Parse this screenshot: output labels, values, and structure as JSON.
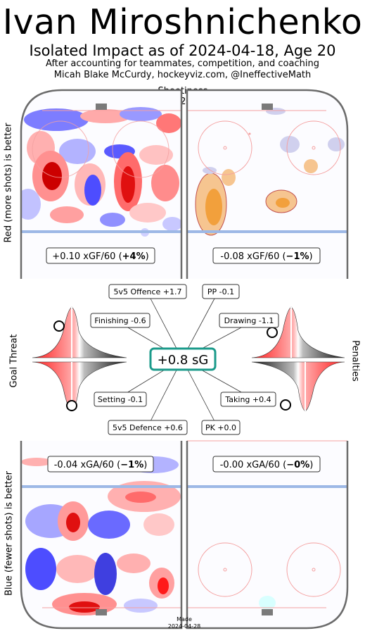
{
  "header": {
    "title": "Ivan Miroshnichenko",
    "subtitle": "Isolated Impact as of 2024-04-18, Age 20",
    "byline1": "After accounting for teammates, competition, and coaching",
    "byline2": "Micah Blake McCurdy, hockeyviz.com, @IneffectiveMath"
  },
  "side_labels": {
    "top_left": "Red (more shots) is better",
    "bottom_left": "Blue (fewer shots) is better",
    "goal_threat": "Goal Threat",
    "penalties": "Penalties"
  },
  "shootiness": {
    "label": "Shootiness",
    "value": "-22%"
  },
  "rinks": {
    "top_left": {
      "text": "+0.10 xGF/60 (",
      "bold": "+4%",
      "close": ")"
    },
    "top_right": {
      "text": "-0.08 xGF/60 (",
      "bold": "−1%",
      "close": ")"
    },
    "bottom_left": {
      "text": "-0.04 xGA/60 (",
      "bold": "−1%",
      "close": ")"
    },
    "bottom_right": {
      "text": "-0.00 xGA/60 (",
      "bold": "−0%",
      "close": ")"
    }
  },
  "center_value": "+0.8 sG",
  "components": {
    "offence": "5v5 Offence +1.7",
    "pp": "PP -0.1",
    "finishing": "Finishing -0.6",
    "drawing": "Drawing -1.1",
    "setting": "Setting -0.1",
    "taking": "Taking +0.4",
    "defence": "5v5 Defence +0.6",
    "pk": "PK +0.0"
  },
  "footer": {
    "made_label": "Made",
    "made_date": "2024-04-28"
  },
  "colors": {
    "accent_teal": "#1a9a8a",
    "red": "#e8363a",
    "blue": "#3f3fe0",
    "orange": "#f2a03c",
    "rink_line_blue": "#9db8e6",
    "rink_line_red": "#f4a0a0",
    "board": "#6b6b6b"
  },
  "chart_data": {
    "type": "table",
    "title": "Isolated Impact as of 2024-04-18, Age 20",
    "overall_sG": 0.8,
    "shootiness_pct": -22,
    "components": [
      {
        "name": "5v5 Offence",
        "value": 1.7
      },
      {
        "name": "PP",
        "value": -0.1
      },
      {
        "name": "Finishing",
        "value": -0.6
      },
      {
        "name": "Drawing",
        "value": -1.1
      },
      {
        "name": "Setting",
        "value": -0.1
      },
      {
        "name": "Taking",
        "value": 0.4
      },
      {
        "name": "5v5 Defence",
        "value": 0.6
      },
      {
        "name": "PK",
        "value": 0.0
      }
    ],
    "rinks": [
      {
        "panel": "5v5 offence",
        "metric": "xGF/60",
        "value": 0.1,
        "pct": 4
      },
      {
        "panel": "PP",
        "metric": "xGF/60",
        "value": -0.08,
        "pct": -1
      },
      {
        "panel": "5v5 defence",
        "metric": "xGA/60",
        "value": -0.04,
        "pct": -1
      },
      {
        "panel": "PK",
        "metric": "xGA/60",
        "value": -0.0,
        "pct": 0
      }
    ]
  }
}
